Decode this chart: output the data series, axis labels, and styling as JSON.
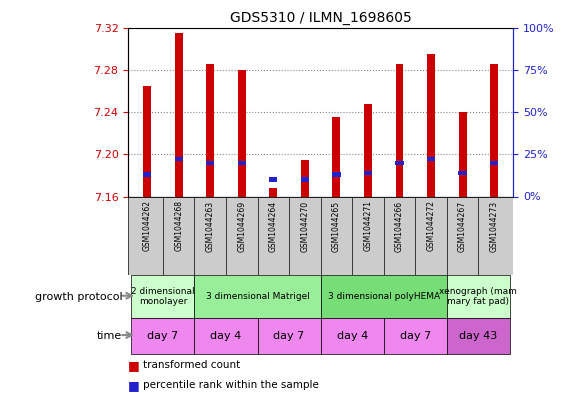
{
  "title": "GDS5310 / ILMN_1698605",
  "samples": [
    "GSM1044262",
    "GSM1044268",
    "GSM1044263",
    "GSM1044269",
    "GSM1044264",
    "GSM1044270",
    "GSM1044265",
    "GSM1044271",
    "GSM1044266",
    "GSM1044272",
    "GSM1044267",
    "GSM1044273"
  ],
  "transformed_counts": [
    7.265,
    7.315,
    7.285,
    7.28,
    7.168,
    7.195,
    7.235,
    7.248,
    7.285,
    7.295,
    7.24,
    7.285
  ],
  "percentile_ranks": [
    13,
    22,
    20,
    20,
    10,
    10,
    13,
    14,
    20,
    22,
    14,
    20
  ],
  "ylim_left": [
    7.16,
    7.32
  ],
  "ylim_right": [
    0,
    100
  ],
  "yticks_left": [
    7.16,
    7.2,
    7.24,
    7.28,
    7.32
  ],
  "yticks_right": [
    0,
    25,
    50,
    75,
    100
  ],
  "bar_color": "#cc0000",
  "percentile_color": "#2222cc",
  "bar_base": 7.16,
  "bar_width": 0.25,
  "growth_protocol_groups": [
    {
      "label": "2 dimensional\nmonolayer",
      "start": 0,
      "end": 2,
      "color": "#ccffcc"
    },
    {
      "label": "3 dimensional Matrigel",
      "start": 2,
      "end": 6,
      "color": "#99ee99"
    },
    {
      "label": "3 dimensional polyHEMA",
      "start": 6,
      "end": 10,
      "color": "#77dd77"
    },
    {
      "label": "xenograph (mam\nmary fat pad)",
      "start": 10,
      "end": 12,
      "color": "#ccffcc"
    }
  ],
  "time_groups": [
    {
      "label": "day 7",
      "start": 0,
      "end": 2,
      "color": "#ee88ee"
    },
    {
      "label": "day 4",
      "start": 2,
      "end": 4,
      "color": "#ee88ee"
    },
    {
      "label": "day 7",
      "start": 4,
      "end": 6,
      "color": "#ee88ee"
    },
    {
      "label": "day 4",
      "start": 6,
      "end": 8,
      "color": "#ee88ee"
    },
    {
      "label": "day 7",
      "start": 8,
      "end": 10,
      "color": "#ee88ee"
    },
    {
      "label": "day 43",
      "start": 10,
      "end": 12,
      "color": "#cc66cc"
    }
  ],
  "legend_items": [
    {
      "label": "transformed count",
      "color": "#cc0000"
    },
    {
      "label": "percentile rank within the sample",
      "color": "#2222cc"
    }
  ],
  "left_axis_color": "#cc0000",
  "right_axis_color": "#2222cc",
  "grid_color": "#888888",
  "sample_box_color": "#cccccc",
  "left_label_color": "#444444"
}
